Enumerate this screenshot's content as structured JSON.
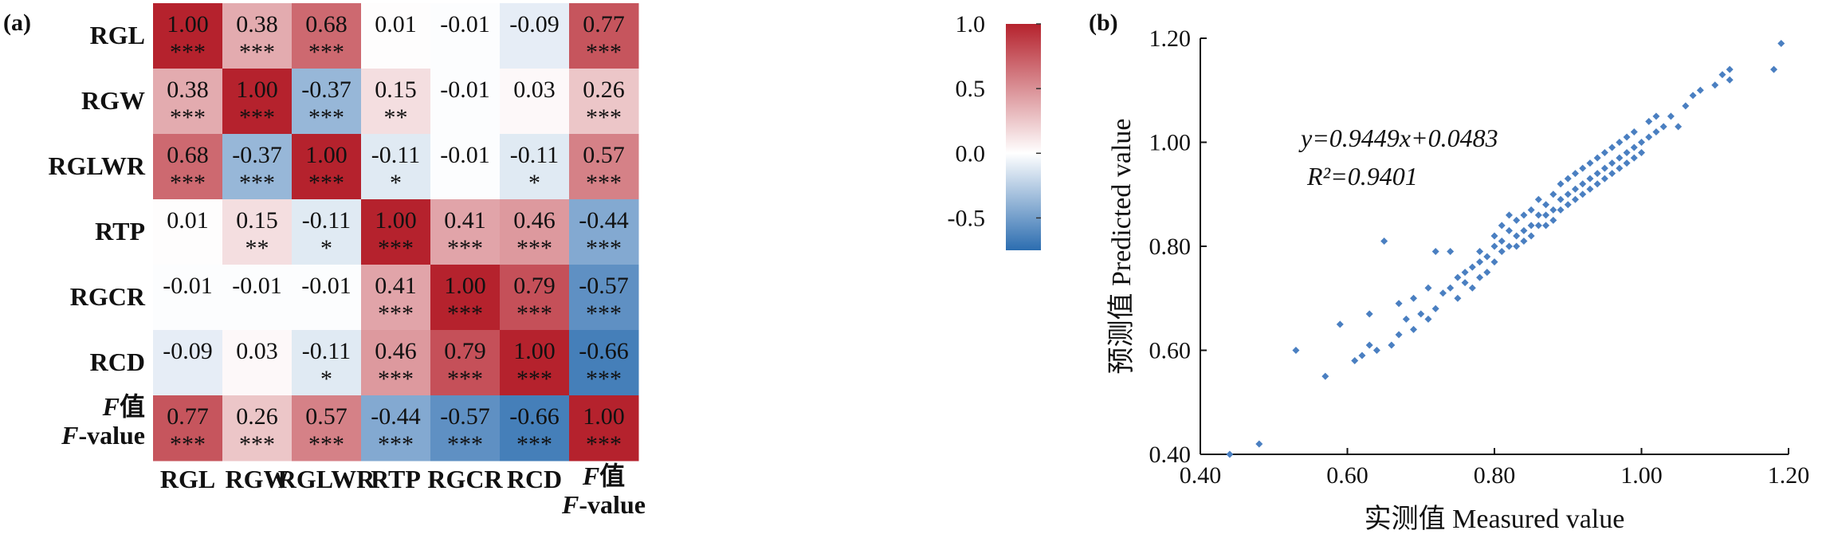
{
  "panel_a": {
    "label": "(a)",
    "chart_data": {
      "type": "heatmap",
      "rows": [
        "RGL",
        "RGW",
        "RGLWR",
        "RTP",
        "RGCR",
        "RCD",
        "F值|F-value"
      ],
      "columns": [
        "RGL",
        "RGW",
        "RGLWR",
        "RTP",
        "RGCR",
        "RCD",
        "F值|F-value"
      ],
      "values": [
        [
          1.0,
          0.38,
          0.68,
          0.01,
          -0.01,
          -0.09,
          0.77
        ],
        [
          0.38,
          1.0,
          -0.37,
          0.15,
          -0.01,
          0.03,
          0.26
        ],
        [
          0.68,
          -0.37,
          1.0,
          -0.11,
          -0.01,
          -0.11,
          0.57
        ],
        [
          0.01,
          0.15,
          -0.11,
          1.0,
          0.41,
          0.46,
          -0.44
        ],
        [
          -0.01,
          -0.01,
          -0.01,
          0.41,
          1.0,
          0.79,
          -0.57
        ],
        [
          -0.09,
          0.03,
          -0.11,
          0.46,
          0.79,
          1.0,
          -0.66
        ],
        [
          0.77,
          0.26,
          0.57,
          -0.44,
          -0.57,
          -0.66,
          1.0
        ]
      ],
      "labels": [
        [
          "1.00",
          "0.38",
          "0.68",
          "0.01",
          "-0.01",
          "-0.09",
          "0.77"
        ],
        [
          "0.38",
          "1.00",
          "-0.37",
          "0.15",
          "-0.01",
          "0.03",
          "0.26"
        ],
        [
          "0.68",
          "-0.37",
          "1.00",
          "-0.11",
          "-0.01",
          "-0.11",
          "0.57"
        ],
        [
          "0.01",
          "0.15",
          "-0.11",
          "1.00",
          "0.41",
          "0.46",
          "-0.44"
        ],
        [
          "-0.01",
          "-0.01",
          "-0.01",
          "0.41",
          "1.00",
          "0.79",
          "-0.57"
        ],
        [
          "-0.09",
          "0.03",
          "-0.11",
          "0.46",
          "0.79",
          "1.00",
          "-0.66"
        ],
        [
          "0.77",
          "0.26",
          "0.57",
          "-0.44",
          "-0.57",
          "-0.66",
          "1.00"
        ]
      ],
      "significance": [
        [
          "***",
          "***",
          "***",
          "",
          "",
          "",
          "***"
        ],
        [
          "***",
          "***",
          "***",
          "**",
          "",
          "",
          "***"
        ],
        [
          "***",
          "***",
          "***",
          "*",
          "",
          "*",
          "***"
        ],
        [
          "",
          "**",
          "*",
          "***",
          "***",
          "***",
          "***"
        ],
        [
          "",
          "",
          "",
          "***",
          "***",
          "***",
          "***"
        ],
        [
          "",
          "",
          "*",
          "***",
          "***",
          "***",
          "***"
        ],
        [
          "***",
          "***",
          "***",
          "***",
          "***",
          "***",
          "***"
        ]
      ],
      "colorbar": {
        "range": [
          -0.75,
          1.0
        ],
        "ticks": [
          1.0,
          0.5,
          0.0,
          -0.5
        ],
        "tick_labels": [
          "1.0",
          "0.5",
          "0.0",
          "-0.5"
        ],
        "colors": [
          "#2c6db0",
          "#ffffff",
          "#b5222d"
        ]
      }
    }
  },
  "panel_b": {
    "label": "(b)",
    "equation": "y=0.9449x+0.0483",
    "r2": "R²=0.9401",
    "chart_data": {
      "type": "scatter",
      "xlabel": "实测值 Measured value",
      "ylabel": "预测值 Predicted value",
      "xlim": [
        0.4,
        1.2
      ],
      "ylim": [
        0.4,
        1.2
      ],
      "xticks": [
        0.4,
        0.6,
        0.8,
        1.0,
        1.2
      ],
      "xtick_labels": [
        "0.40",
        "0.60",
        "0.80",
        "1.00",
        "1.20"
      ],
      "yticks": [
        0.4,
        0.6,
        0.8,
        1.0,
        1.2
      ],
      "ytick_labels": [
        "0.40",
        "0.60",
        "0.80",
        "1.00",
        "1.20"
      ],
      "marker_color": "#4a7fc1",
      "points": [
        [
          0.44,
          0.4
        ],
        [
          0.48,
          0.42
        ],
        [
          0.53,
          0.6
        ],
        [
          0.57,
          0.55
        ],
        [
          0.59,
          0.65
        ],
        [
          0.61,
          0.58
        ],
        [
          0.62,
          0.59
        ],
        [
          0.63,
          0.61
        ],
        [
          0.63,
          0.67
        ],
        [
          0.64,
          0.6
        ],
        [
          0.65,
          0.81
        ],
        [
          0.66,
          0.61
        ],
        [
          0.67,
          0.63
        ],
        [
          0.67,
          0.69
        ],
        [
          0.68,
          0.66
        ],
        [
          0.69,
          0.7
        ],
        [
          0.69,
          0.64
        ],
        [
          0.7,
          0.67
        ],
        [
          0.71,
          0.72
        ],
        [
          0.71,
          0.66
        ],
        [
          0.72,
          0.79
        ],
        [
          0.72,
          0.68
        ],
        [
          0.73,
          0.71
        ],
        [
          0.74,
          0.72
        ],
        [
          0.74,
          0.79
        ],
        [
          0.75,
          0.74
        ],
        [
          0.75,
          0.7
        ],
        [
          0.76,
          0.73
        ],
        [
          0.76,
          0.75
        ],
        [
          0.77,
          0.76
        ],
        [
          0.77,
          0.72
        ],
        [
          0.78,
          0.77
        ],
        [
          0.78,
          0.74
        ],
        [
          0.78,
          0.79
        ],
        [
          0.79,
          0.78
        ],
        [
          0.79,
          0.75
        ],
        [
          0.8,
          0.8
        ],
        [
          0.8,
          0.77
        ],
        [
          0.8,
          0.82
        ],
        [
          0.81,
          0.81
        ],
        [
          0.81,
          0.79
        ],
        [
          0.81,
          0.84
        ],
        [
          0.82,
          0.8
        ],
        [
          0.82,
          0.83
        ],
        [
          0.82,
          0.86
        ],
        [
          0.83,
          0.82
        ],
        [
          0.83,
          0.85
        ],
        [
          0.83,
          0.8
        ],
        [
          0.84,
          0.83
        ],
        [
          0.84,
          0.86
        ],
        [
          0.84,
          0.81
        ],
        [
          0.85,
          0.84
        ],
        [
          0.85,
          0.87
        ],
        [
          0.85,
          0.82
        ],
        [
          0.86,
          0.86
        ],
        [
          0.86,
          0.84
        ],
        [
          0.86,
          0.89
        ],
        [
          0.87,
          0.86
        ],
        [
          0.87,
          0.88
        ],
        [
          0.87,
          0.84
        ],
        [
          0.88,
          0.87
        ],
        [
          0.88,
          0.9
        ],
        [
          0.88,
          0.85
        ],
        [
          0.89,
          0.89
        ],
        [
          0.89,
          0.87
        ],
        [
          0.89,
          0.92
        ],
        [
          0.9,
          0.9
        ],
        [
          0.9,
          0.88
        ],
        [
          0.9,
          0.93
        ],
        [
          0.91,
          0.91
        ],
        [
          0.91,
          0.89
        ],
        [
          0.91,
          0.94
        ],
        [
          0.92,
          0.92
        ],
        [
          0.92,
          0.9
        ],
        [
          0.92,
          0.95
        ],
        [
          0.93,
          0.93
        ],
        [
          0.93,
          0.91
        ],
        [
          0.93,
          0.96
        ],
        [
          0.94,
          0.94
        ],
        [
          0.94,
          0.92
        ],
        [
          0.94,
          0.97
        ],
        [
          0.95,
          0.95
        ],
        [
          0.95,
          0.93
        ],
        [
          0.95,
          0.98
        ],
        [
          0.96,
          0.96
        ],
        [
          0.96,
          0.94
        ],
        [
          0.96,
          0.99
        ],
        [
          0.97,
          0.97
        ],
        [
          0.97,
          0.95
        ],
        [
          0.97,
          1.0
        ],
        [
          0.98,
          0.98
        ],
        [
          0.98,
          0.96
        ],
        [
          0.98,
          1.01
        ],
        [
          0.99,
          0.99
        ],
        [
          0.99,
          0.97
        ],
        [
          0.99,
          1.02
        ],
        [
          1.0,
          1.0
        ],
        [
          1.0,
          0.98
        ],
        [
          1.01,
          1.01
        ],
        [
          1.01,
          1.04
        ],
        [
          1.02,
          1.02
        ],
        [
          1.02,
          1.05
        ],
        [
          1.03,
          1.03
        ],
        [
          1.04,
          1.05
        ],
        [
          1.05,
          1.03
        ],
        [
          1.06,
          1.07
        ],
        [
          1.07,
          1.09
        ],
        [
          1.08,
          1.1
        ],
        [
          1.1,
          1.11
        ],
        [
          1.11,
          1.13
        ],
        [
          1.12,
          1.12
        ],
        [
          1.12,
          1.14
        ],
        [
          1.18,
          1.14
        ],
        [
          1.19,
          1.19
        ]
      ]
    }
  }
}
